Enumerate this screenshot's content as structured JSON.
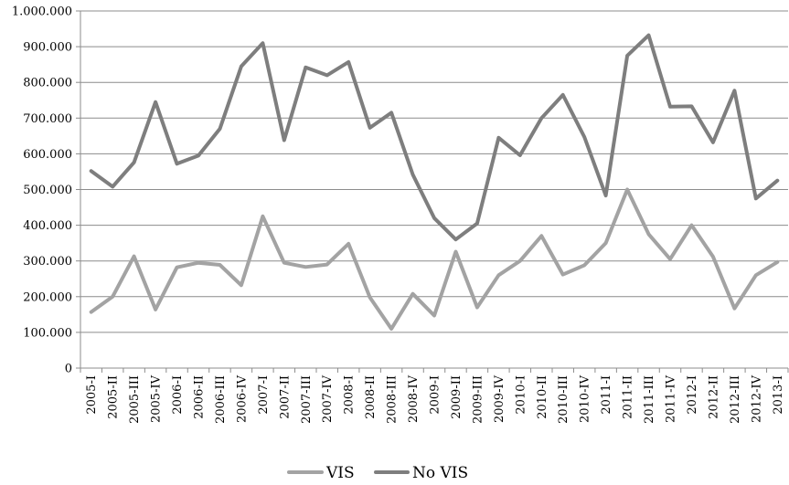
{
  "chart_data": {
    "type": "line",
    "title": "",
    "xlabel": "",
    "ylabel": "",
    "ylim": [
      0,
      1000000
    ],
    "y_ticks": [
      0,
      100000,
      200000,
      300000,
      400000,
      500000,
      600000,
      700000,
      800000,
      900000,
      1000000
    ],
    "y_tick_labels": [
      "0",
      "100.000",
      "200.000",
      "300.000",
      "400.000",
      "500.000",
      "600.000",
      "700.000",
      "800.000",
      "900.000",
      "1.000.000"
    ],
    "grid": "horizontal",
    "legend_position": "bottom-center",
    "categories": [
      "2005-I",
      "2005-II",
      "2005-III",
      "2005-IV",
      "2006-I",
      "2006-II",
      "2006-III",
      "2006-IV",
      "2007-I",
      "2007-II",
      "2007-III",
      "2007-IV",
      "2008-I",
      "2008-II",
      "2008-III",
      "2008-IV",
      "2009-I",
      "2009-II",
      "2009-III",
      "2009-IV",
      "2010-I",
      "2010-II",
      "2010-III",
      "2010-IV",
      "2011-I",
      "2011-II",
      "2011-III",
      "2011-IV",
      "2012-I",
      "2012-II",
      "2012-III",
      "2012-IV",
      "2013-I"
    ],
    "series": [
      {
        "name": "VIS",
        "color": "#a3a3a3",
        "values": [
          157000,
          200000,
          313000,
          164000,
          282000,
          295000,
          289000,
          232000,
          425000,
          295000,
          283000,
          290000,
          348000,
          198000,
          110000,
          208000,
          147000,
          326000,
          170000,
          260000,
          300000,
          370000,
          262000,
          288000,
          350000,
          500000,
          375000,
          305000,
          400000,
          312000,
          167000,
          260000,
          297000
        ]
      },
      {
        "name": "No VIS",
        "color": "#7e7e7e",
        "values": [
          552000,
          508000,
          576000,
          745000,
          572000,
          595000,
          670000,
          845000,
          910000,
          638000,
          842000,
          820000,
          857000,
          673000,
          715000,
          542000,
          420000,
          360000,
          405000,
          645000,
          596000,
          700000,
          765000,
          647000,
          483000,
          875000,
          932000,
          732000,
          733000,
          632000,
          777000,
          475000,
          525000
        ]
      }
    ]
  }
}
